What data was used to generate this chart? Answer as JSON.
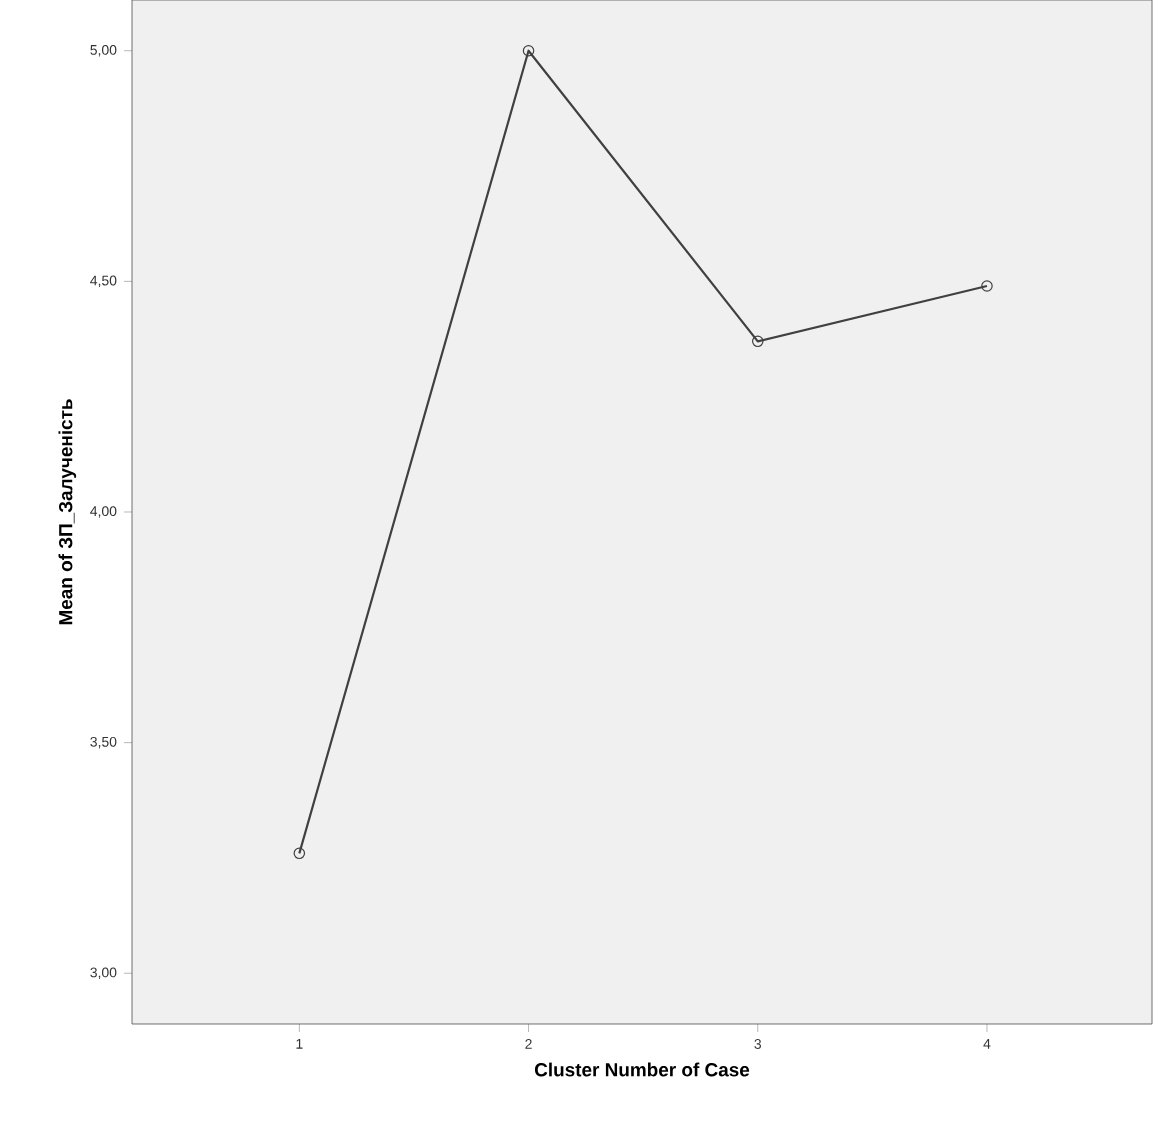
{
  "chart_data": {
    "type": "line",
    "xlabel": "Cluster Number of Case",
    "ylabel": "Mean of ЗП_Залученість",
    "categories": [
      "1",
      "2",
      "3",
      "4"
    ],
    "series": [
      {
        "color": "#404040",
        "values": [
          3.26,
          5.0,
          4.37,
          4.49
        ]
      }
    ],
    "ylim": [
      2.89,
      5.11
    ],
    "yticks": [
      {
        "value": 3,
        "label": "3,00"
      },
      {
        "value": 3.5,
        "label": "3,50"
      },
      {
        "value": 4,
        "label": "4,00"
      },
      {
        "value": 4.5,
        "label": "4,50"
      },
      {
        "value": 5,
        "label": "5,00"
      }
    ],
    "marker": "circle",
    "line_style": "solid",
    "grid": false
  }
}
